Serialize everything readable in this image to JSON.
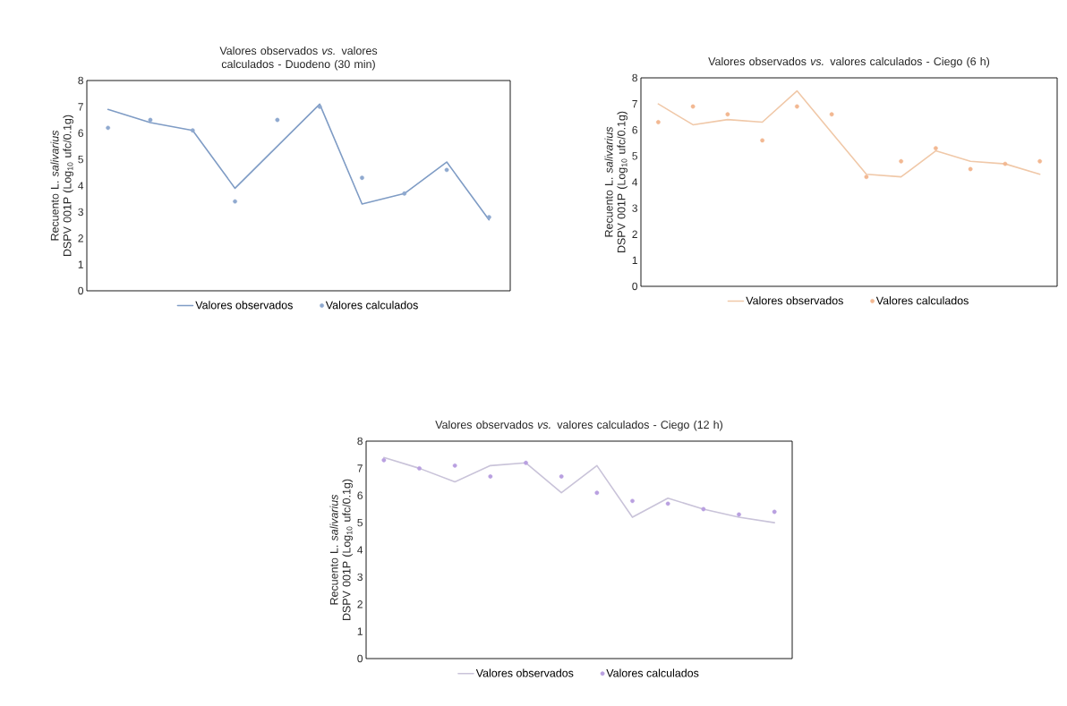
{
  "chart_data": [
    {
      "type": "line",
      "title": "Valores observados *vs.* valores calculados - Duodeno (30 min)",
      "ylabel": "Recuento L. *salivarius* DSPV 001P (Log$_{10}$ ufc/0.1g)",
      "categories": [
        null,
        null,
        null,
        null,
        null,
        null,
        null,
        null,
        null,
        null
      ],
      "ylim": [
        0,
        8
      ],
      "yticks": [
        0,
        1,
        2,
        3,
        4,
        5,
        6,
        7,
        8
      ],
      "legend": "bottom",
      "series": [
        {
          "name": "Valores observados",
          "type": "line",
          "marker": "none",
          "color": "#7f9cc5",
          "values": [
            6.9,
            6.4,
            6.1,
            3.9,
            5.5,
            7.1,
            3.3,
            3.7,
            4.9,
            2.7
          ]
        },
        {
          "name": "Valores calculados",
          "type": "scatter",
          "marker": "circle",
          "color": "#8fa9cf",
          "values": [
            6.2,
            6.5,
            6.1,
            3.4,
            6.5,
            7.0,
            4.3,
            3.7,
            4.6,
            2.8
          ]
        }
      ]
    },
    {
      "type": "line",
      "title": "Valores observados *vs.* valores calculados - Ciego (6 h)",
      "ylabel": "Recuento L. *salivarius* DSPV 001P (Log$_{10}$ ufc/0.1g)",
      "categories": [
        null,
        null,
        null,
        null,
        null,
        null,
        null,
        null,
        null,
        null,
        null,
        null
      ],
      "ylim": [
        0,
        8
      ],
      "yticks": [
        0,
        1,
        2,
        3,
        4,
        5,
        6,
        7,
        8
      ],
      "legend": "bottom",
      "series": [
        {
          "name": "Valores observados",
          "type": "line",
          "marker": "none",
          "color": "#f0c8a8",
          "values": [
            7.0,
            6.2,
            6.4,
            6.3,
            7.5,
            5.9,
            4.3,
            4.2,
            5.2,
            4.8,
            4.7,
            4.3
          ]
        },
        {
          "name": "Valores calculados",
          "type": "scatter",
          "marker": "circle",
          "color": "#f2b892",
          "values": [
            6.3,
            6.9,
            6.6,
            5.6,
            6.9,
            6.6,
            4.2,
            4.8,
            5.3,
            4.5,
            4.7,
            4.8
          ]
        }
      ]
    },
    {
      "type": "line",
      "title": "Valores observados *vs.* valores calculados - Ciego (12 h)",
      "ylabel": "Recuento L. *salivarius* DSPV 001P (Log$_{10}$ ufc/0.1g)",
      "categories": [
        null,
        null,
        null,
        null,
        null,
        null,
        null,
        null,
        null,
        null,
        null,
        null
      ],
      "ylim": [
        0,
        8
      ],
      "yticks": [
        0,
        1,
        2,
        3,
        4,
        5,
        6,
        7,
        8
      ],
      "legend": "bottom",
      "series": [
        {
          "name": "Valores observados",
          "type": "line",
          "marker": "none",
          "color": "#c9c3d9",
          "values": [
            7.4,
            7.0,
            6.5,
            7.1,
            7.2,
            6.1,
            7.1,
            5.2,
            5.9,
            5.5,
            5.2,
            5.0
          ]
        },
        {
          "name": "Valores calculados",
          "type": "scatter",
          "marker": "circle",
          "color": "#b9a0e0",
          "values": [
            7.3,
            7.0,
            7.1,
            6.7,
            7.2,
            6.7,
            6.1,
            5.8,
            5.7,
            5.5,
            5.3,
            5.4
          ]
        }
      ]
    }
  ]
}
